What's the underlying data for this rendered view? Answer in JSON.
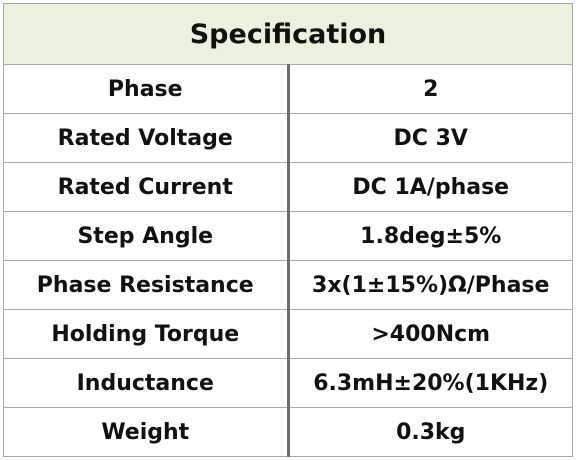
{
  "table": {
    "header": "Specification",
    "rows": [
      {
        "label": "Phase",
        "value": "2"
      },
      {
        "label": "Rated Voltage",
        "value": "DC 3V"
      },
      {
        "label": "Rated Current",
        "value": "DC 1A/phase"
      },
      {
        "label": "Step Angle",
        "value": "1.8deg±5%"
      },
      {
        "label": "Phase Resistance",
        "value": "3x(1±15%)Ω/Phase"
      },
      {
        "label": "Holding Torque",
        "value": ">400Ncm"
      },
      {
        "label": "Inductance",
        "value": "6.3mH±20%(1KHz)"
      },
      {
        "label": "Weight",
        "value": "0.3kg"
      }
    ]
  },
  "colors": {
    "header_background": "#eaf1dd",
    "border": "#a8a8a8",
    "divider": "#6e6e6e",
    "text": "#111111"
  }
}
